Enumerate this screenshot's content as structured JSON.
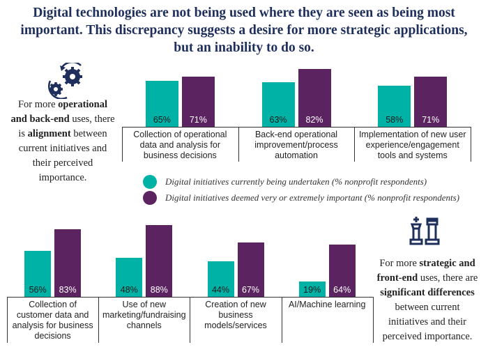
{
  "title": "Digital technologies are not being used where they are seen as being most important. This discrepancy suggests a desire for more strategic applications, but an inability to do so.",
  "left_note": {
    "pre": "For more ",
    "b1": "operational and back-end",
    "mid": " uses, there is ",
    "b2": "alignment",
    "post": " between current initiatives and their perceived importance.",
    "icon": "gears-icon"
  },
  "right_note": {
    "pre": "For more ",
    "b1": "strategic and front-end",
    "mid": " uses, there are ",
    "b2": "significant differences",
    "post": " between current initiatives and their perceived importance.",
    "icon": "chess-pieces-icon"
  },
  "colors": {
    "current": "#00b2a6",
    "important": "#5c2361",
    "title": "#1f2f5c"
  },
  "chart_data": [
    {
      "type": "bar",
      "title": "Operational and back-end uses",
      "categories": [
        "Collection of operational data and analysis for business decisions",
        "Back-end operational improvement/process automation",
        "Implementation of new user experience/engagement tools and systems"
      ],
      "series": [
        {
          "name": "Digital initiatives currently being undertaken (% nonprofit respondents)",
          "values": [
            65,
            63,
            58
          ],
          "labels": [
            "65%",
            "63%",
            "58%"
          ]
        },
        {
          "name": "Digital initiatives deemed very or extremely important (% nonprofit respondents)",
          "values": [
            71,
            82,
            71
          ],
          "labels": [
            "71%",
            "82%",
            "71%"
          ]
        }
      ],
      "ylim": [
        0,
        100
      ]
    },
    {
      "type": "bar",
      "title": "Strategic and front-end uses",
      "categories": [
        "Collection of customer data and analysis for business decisions",
        "Use of new marketing/fundraising channels",
        "Creation of new business models/services",
        "AI/Machine learning"
      ],
      "series": [
        {
          "name": "Digital initiatives currently being undertaken (% nonprofit respondents)",
          "values": [
            56,
            48,
            44,
            19
          ],
          "labels": [
            "56%",
            "48%",
            "44%",
            "19%"
          ]
        },
        {
          "name": "Digital initiatives deemed very or extremely important (% nonprofit respondents)",
          "values": [
            83,
            88,
            67,
            64
          ],
          "labels": [
            "83%",
            "88%",
            "67%",
            "64%"
          ]
        }
      ],
      "ylim": [
        0,
        100
      ]
    }
  ],
  "legend": [
    "Digital initiatives currently being undertaken (% nonprofit respondents)",
    "Digital initiatives deemed very or extremely important (% nonprofit respondents)"
  ]
}
